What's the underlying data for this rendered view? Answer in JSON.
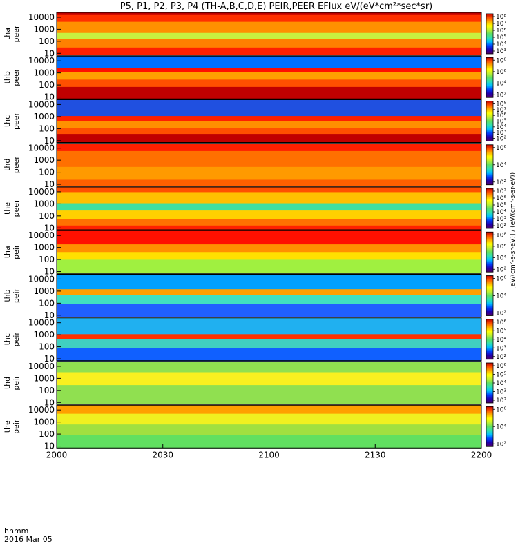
{
  "chart_data": {
    "type": "heatmap",
    "title": "P5, P1, P2, P3, P4 (TH-A,B,C,D,E) PEIR,PEER EFlux eV/(eV*cm²*sec*sr)",
    "xlabel": "hhmm",
    "date_label": "2016 Mar 05",
    "x_ticks": [
      "2000",
      "2030",
      "2100",
      "2130",
      "2200"
    ],
    "y_scale": "log",
    "y_range": [
      7,
      25000
    ],
    "colorbar_units_label": "[eV/(cm²-s-sr-eV)] / (eV/(cm²-s-sr-eV))",
    "colormap": [
      "#500060",
      "#2000b0",
      "#0040ff",
      "#00c0ff",
      "#30e0b0",
      "#60e060",
      "#c0f030",
      "#ffff00",
      "#ffb000",
      "#ff6000",
      "#ff1000",
      "#c00000"
    ],
    "panels": [
      {
        "label1": "tha",
        "label2": "peer",
        "y_ticks": [
          "10000",
          "1000",
          "100",
          "10"
        ],
        "cb_ticks": [
          "10⁸",
          "10⁷",
          "10⁶",
          "10⁵",
          "10⁴",
          "10³"
        ]
      },
      {
        "label1": "thb",
        "label2": "peer",
        "y_ticks": [
          "10000",
          "1000",
          "100",
          "10"
        ],
        "cb_ticks": [
          "10⁸",
          "10⁶",
          "10⁴",
          "10²"
        ]
      },
      {
        "label1": "thc",
        "label2": "peer",
        "y_ticks": [
          "10000",
          "1000",
          "100",
          "10"
        ],
        "cb_ticks": [
          "10⁸",
          "10⁷",
          "10⁶",
          "10⁵",
          "10⁴",
          "10³",
          "10²"
        ]
      },
      {
        "label1": "thd",
        "label2": "peer",
        "y_ticks": [
          "10000",
          "1000",
          "100",
          "10"
        ],
        "cb_ticks": [
          "10⁶",
          "10⁴",
          "10²"
        ]
      },
      {
        "label1": "the",
        "label2": "peer",
        "y_ticks": [
          "10000",
          "1000",
          "100",
          "10"
        ],
        "cb_ticks": [
          "10⁷",
          "10⁶",
          "10⁵",
          "10⁴",
          "10³",
          "10²"
        ]
      },
      {
        "label1": "tha",
        "label2": "peir",
        "y_ticks": [
          "10000",
          "1000",
          "100",
          "10"
        ],
        "cb_ticks": [
          "10⁸",
          "10⁶",
          "10⁴",
          "10²"
        ]
      },
      {
        "label1": "thb",
        "label2": "peir",
        "y_ticks": [
          "10000",
          "1000",
          "100",
          "10"
        ],
        "cb_ticks": [
          "10⁶",
          "10⁴",
          "10²"
        ]
      },
      {
        "label1": "thc",
        "label2": "peir",
        "y_ticks": [
          "10000",
          "1000",
          "100",
          "10"
        ],
        "cb_ticks": [
          "10⁶",
          "10⁵",
          "10⁴",
          "10³",
          "10²"
        ]
      },
      {
        "label1": "thd",
        "label2": "peir",
        "y_ticks": [
          "10000",
          "1000",
          "100",
          "10"
        ],
        "cb_ticks": [
          "10⁶",
          "10⁵",
          "10⁴",
          "10³",
          "10²"
        ]
      },
      {
        "label1": "the",
        "label2": "peir",
        "y_ticks": [
          "10000",
          "1000",
          "100",
          "10"
        ],
        "cb_ticks": [
          "10⁶",
          "10⁴",
          "10²"
        ]
      }
    ]
  }
}
